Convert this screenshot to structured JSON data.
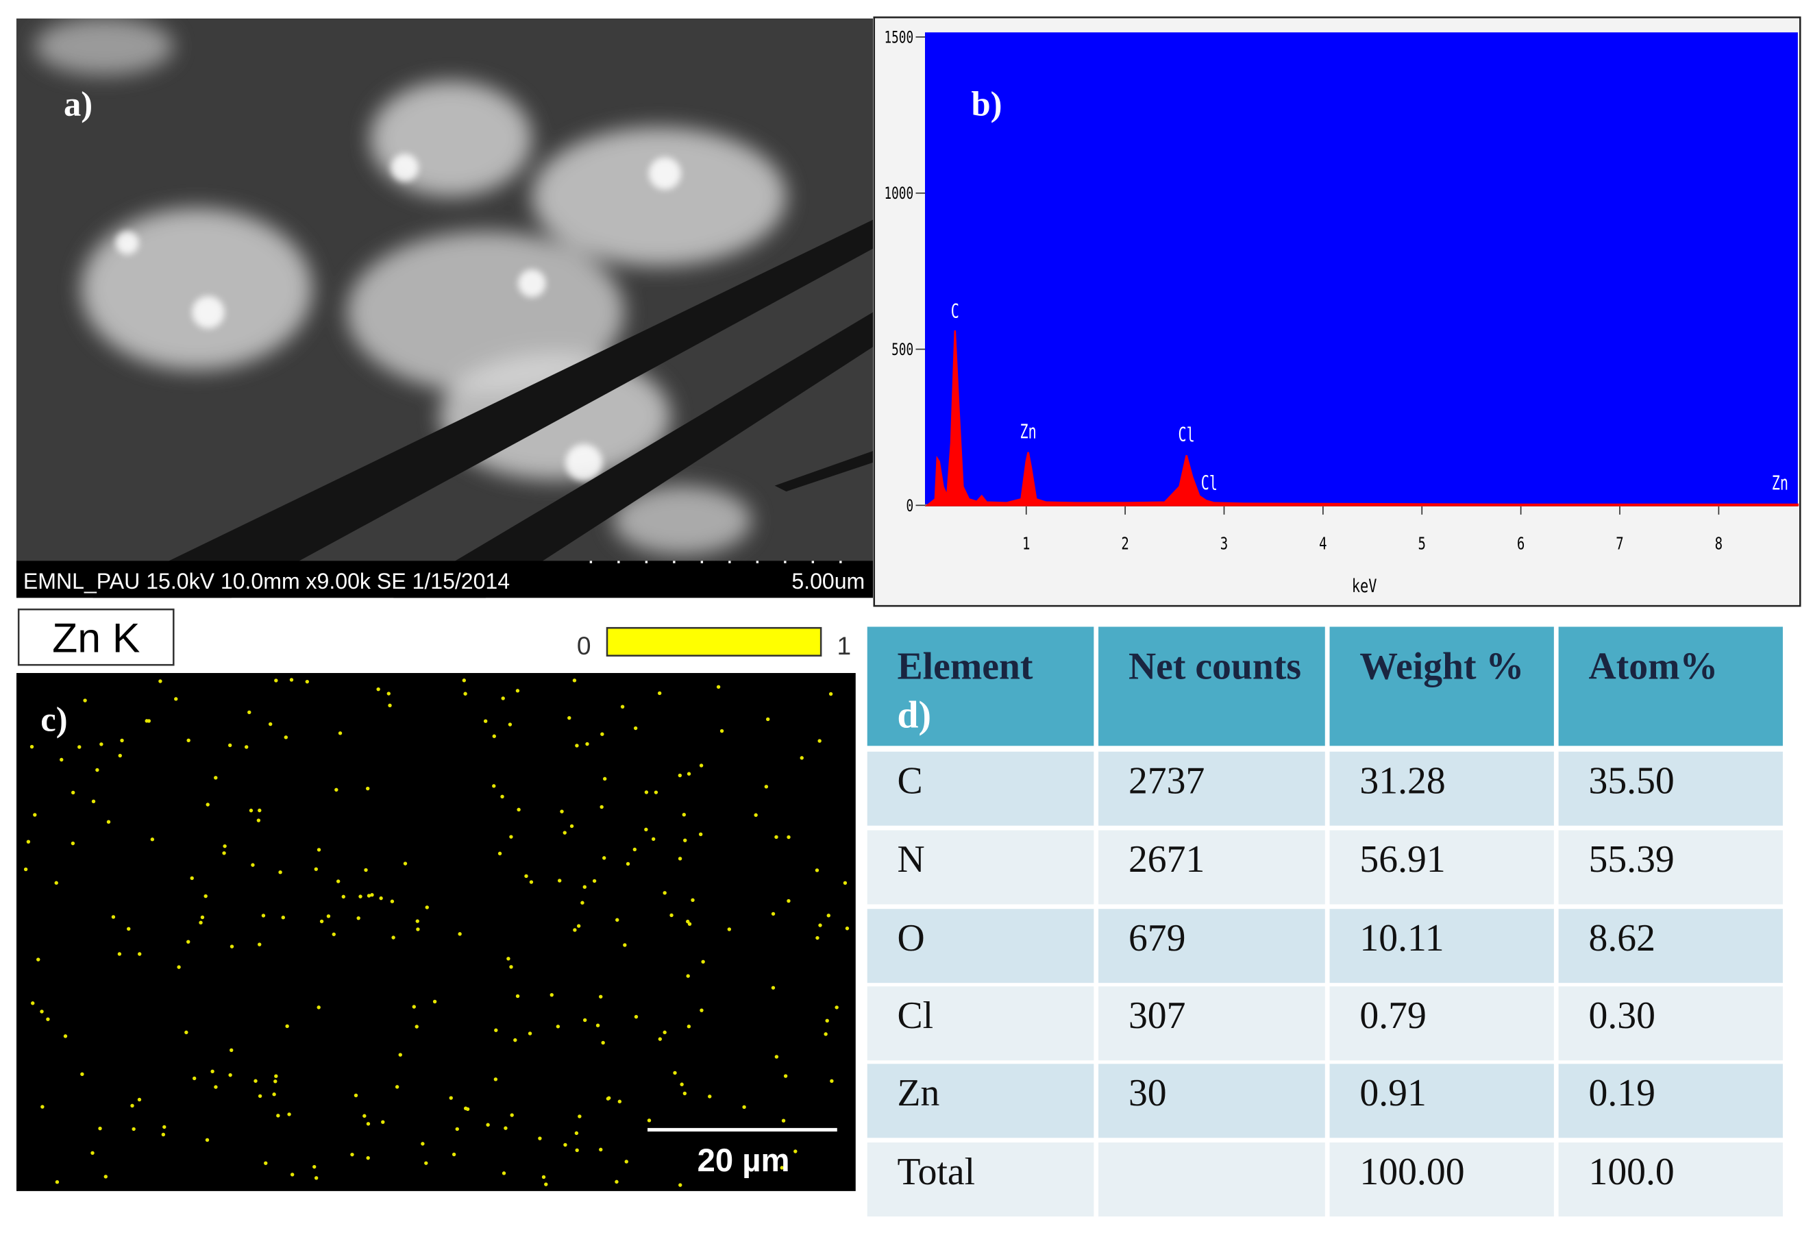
{
  "panel_a": {
    "label": "a)",
    "caption": "EMNL_PAU 15.0kV 10.0mm x9.00k SE 1/15/2014",
    "scale": "5.00um"
  },
  "chart_data": {
    "type": "line",
    "label": "b)",
    "x_label": "keV",
    "color": "#ff0000",
    "background": "#0000ff",
    "x": [
      0.0,
      0.08,
      0.1,
      0.12,
      0.16,
      0.2,
      0.24,
      0.28,
      0.32,
      0.36,
      0.42,
      0.5,
      0.55,
      0.6,
      0.8,
      0.95,
      1.0,
      1.02,
      1.05,
      1.1,
      1.2,
      1.5,
      2.0,
      2.4,
      2.55,
      2.62,
      2.68,
      2.75,
      2.82,
      2.9,
      3.2,
      4,
      5,
      6,
      7,
      8,
      8.8
    ],
    "values": [
      0,
      20,
      150,
      140,
      60,
      30,
      200,
      560,
      300,
      60,
      20,
      12,
      30,
      10,
      8,
      20,
      140,
      170,
      120,
      20,
      10,
      8,
      8,
      10,
      60,
      160,
      90,
      30,
      15,
      8,
      6,
      5,
      4,
      3,
      3,
      3,
      3
    ],
    "xlim": [
      0,
      8.8
    ],
    "ylim": [
      0,
      1500
    ],
    "xticks": [
      1,
      2,
      3,
      4,
      5,
      6,
      7,
      8
    ],
    "yticks": [
      0,
      500,
      1000,
      1500
    ],
    "annotations": [
      {
        "text": "C",
        "x": 0.28,
        "y": 600
      },
      {
        "text": "Zn",
        "x": 1.02,
        "y": 215
      },
      {
        "text": "Cl",
        "x": 2.62,
        "y": 205
      },
      {
        "text": "Cl",
        "x": 2.85,
        "y": 50
      },
      {
        "text": "Zn",
        "x": 8.62,
        "y": 50
      }
    ]
  },
  "panel_c": {
    "label": "c)",
    "element": "Zn K",
    "scale_min": "0",
    "scale_max": "1",
    "scale_bar": "20 µm"
  },
  "table": {
    "label": "d)",
    "header": [
      "Element",
      "Net counts",
      "Weight %",
      "Atom%"
    ],
    "rows": [
      [
        "C",
        "2737",
        "31.28",
        "35.50"
      ],
      [
        "N",
        "2671",
        "56.91",
        "55.39"
      ],
      [
        "O",
        "679",
        "10.11",
        "8.62"
      ],
      [
        "Cl",
        "307",
        "0.79",
        "0.30"
      ],
      [
        "Zn",
        "30",
        "0.91",
        "0.19"
      ],
      [
        "Total",
        null,
        "100.00",
        "100.0"
      ]
    ]
  }
}
